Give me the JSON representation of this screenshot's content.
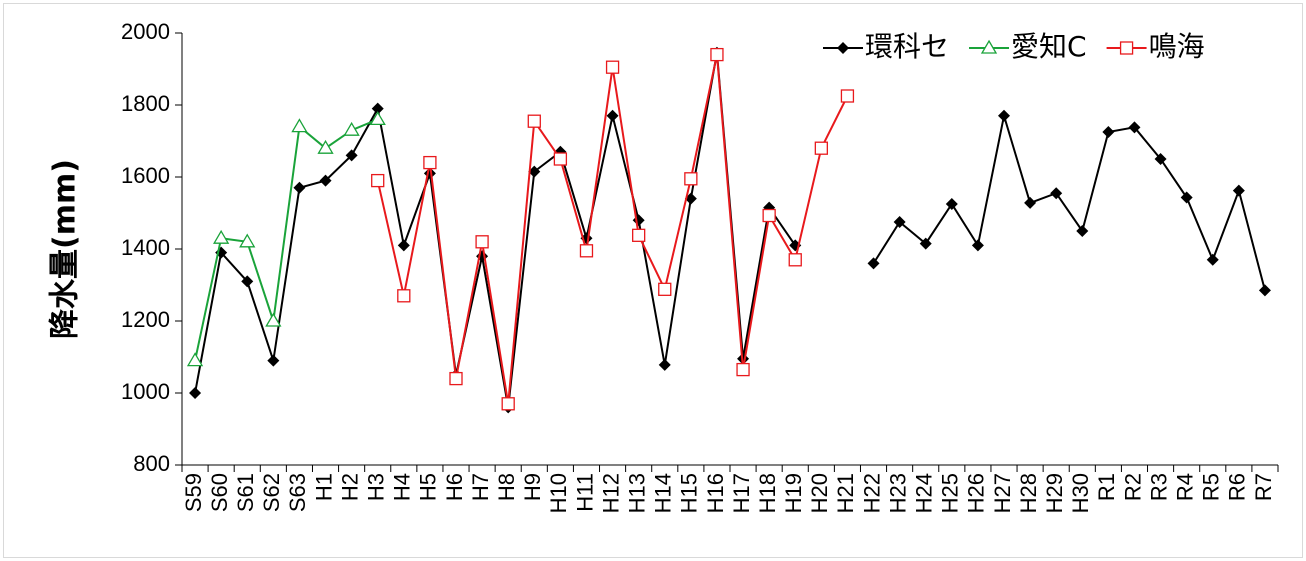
{
  "chart_data": {
    "type": "line",
    "y_label": "降水量(mm)",
    "categories": [
      "S59",
      "S60",
      "S61",
      "S62",
      "S63",
      "H1",
      "H2",
      "H3",
      "H4",
      "H5",
      "H6",
      "H7",
      "H8",
      "H9",
      "H10",
      "H11",
      "H12",
      "H13",
      "H14",
      "H15",
      "H16",
      "H17",
      "H18",
      "H19",
      "H20",
      "H21",
      "H22",
      "H23",
      "H24",
      "H25",
      "H26",
      "H27",
      "H28",
      "H29",
      "H30",
      "R1",
      "R2",
      "R3",
      "R4",
      "R5",
      "R6",
      "R7"
    ],
    "series": [
      {
        "name": "環科セ",
        "color": "#000000",
        "marker": "diamond",
        "values": [
          1000,
          1390,
          1310,
          1090,
          1570,
          1590,
          1660,
          1790,
          1410,
          1610,
          1050,
          1380,
          960,
          1615,
          1670,
          1430,
          1770,
          1480,
          1078,
          1540,
          1945,
          1095,
          1515,
          1410,
          null,
          null,
          1360,
          1475,
          1415,
          1525,
          1410,
          1770,
          1528,
          1555,
          1450,
          1725,
          1738,
          1650,
          1543,
          1370,
          1562,
          1285
        ]
      },
      {
        "name": "愛知C",
        "color": "#1aa33a",
        "marker": "triangle",
        "values": [
          1090,
          1430,
          1420,
          1200,
          1740,
          1680,
          1730,
          1760,
          null,
          null,
          null,
          null,
          null,
          null,
          null,
          null,
          null,
          null,
          null,
          null,
          null,
          null,
          null,
          null,
          null,
          null,
          null,
          null,
          null,
          null,
          null,
          null,
          null,
          null,
          null,
          null,
          null,
          null,
          null,
          null,
          null,
          null
        ]
      },
      {
        "name": "鳴海",
        "color": "#e8191c",
        "marker": "square",
        "values": [
          null,
          null,
          null,
          null,
          null,
          null,
          null,
          1590,
          1270,
          1640,
          1040,
          1420,
          970,
          1755,
          1650,
          1395,
          1905,
          1438,
          1288,
          1595,
          1940,
          1065,
          1493,
          1370,
          1680,
          1825,
          null,
          null,
          null,
          null,
          null,
          null,
          null,
          null,
          null,
          null,
          null,
          null,
          null,
          null,
          null,
          null
        ]
      }
    ],
    "ylim": [
      800,
      2000
    ],
    "yticks": [
      800,
      1000,
      1200,
      1400,
      1600,
      1800,
      2000
    ],
    "legend": "top-right"
  }
}
